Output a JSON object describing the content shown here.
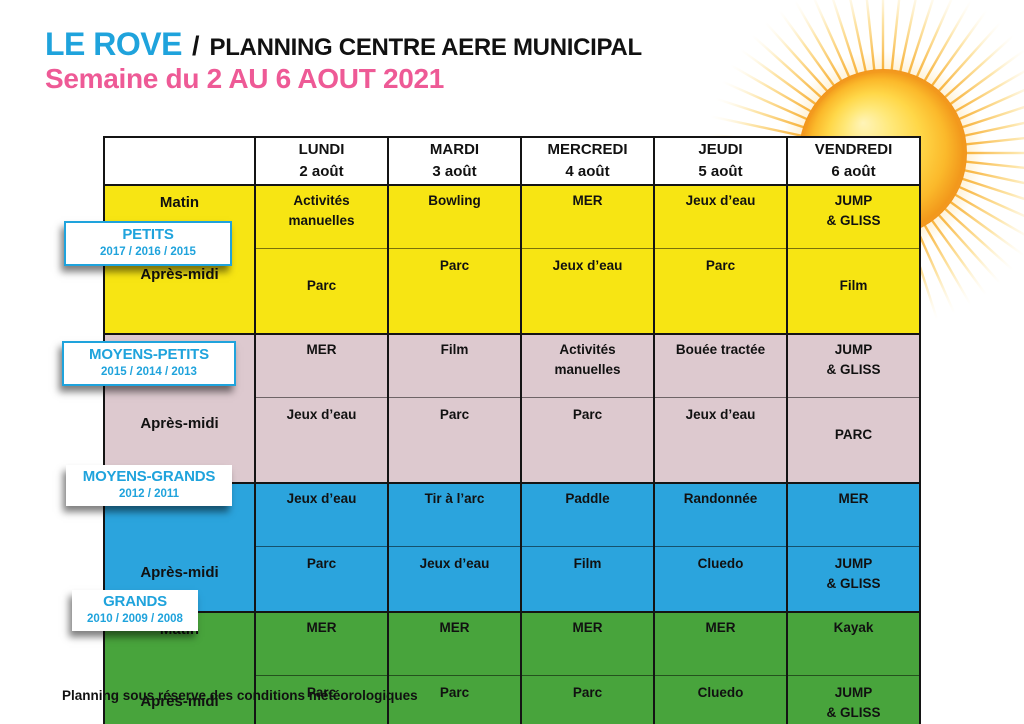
{
  "page": {
    "title_brand": "LE ROVE",
    "title_separator": "/",
    "title_rest": "PLANNING CENTRE AERE MUNICIPAL",
    "subtitle": "Semaine du 2 AU 6 AOUT 2021",
    "footer_note": "Planning sous réserve des conditions météorologiques"
  },
  "colors": {
    "brand_cyan": "#1FA3DC",
    "subtitle_pink": "#EE5A96",
    "border_black": "#141414",
    "petits_yellow": "#F7E513",
    "moyens_petits_mauve": "#DDC9CF",
    "moyens_grands_blue": "#2BA4DD",
    "grands_green": "#48A43C",
    "sun_core": "#FFD748",
    "sun_rim": "#F09118"
  },
  "icons": {
    "sun": "sun-with-rays"
  },
  "table": {
    "header": {
      "corner_label": "",
      "days": [
        {
          "name": "LUNDI",
          "date": "2 août"
        },
        {
          "name": "MARDI",
          "date": "3 août"
        },
        {
          "name": "MERCREDI",
          "date": "4 août"
        },
        {
          "name": "JEUDI",
          "date": "5 août"
        },
        {
          "name": "VENDREDI",
          "date": "6 août"
        }
      ]
    },
    "row_labels": {
      "morning": "Matin",
      "afternoon": "Après-midi"
    },
    "groups": [
      {
        "id": "petits",
        "label": "PETITS",
        "years": "2017 / 2016 / 2015",
        "color": "#F7E513",
        "label_bordered": true,
        "matin": [
          "Activités\nmanuelles",
          "Bowling",
          "MER",
          "Jeux d’eau",
          "JUMP\n& GLISS"
        ],
        "apres_midi": [
          {
            "text": "Parc",
            "low": true
          },
          "Parc",
          "Jeux d’eau",
          "Parc",
          {
            "text": "Film",
            "low": true
          }
        ]
      },
      {
        "id": "moyens-petits",
        "label": "MOYENS-PETITS",
        "years": "2015 / 2014 / 2013",
        "color": "#DDC9CF",
        "label_bordered": true,
        "matin": [
          "MER",
          "Film",
          "Activités\nmanuelles",
          "Bouée tractée",
          "JUMP\n& GLISS"
        ],
        "apres_midi": [
          "Jeux d’eau",
          "Parc",
          "Parc",
          "Jeux d’eau",
          {
            "text": "PARC",
            "low": true
          }
        ]
      },
      {
        "id": "moyens-grands",
        "label": "MOYENS-GRANDS",
        "years": "2012 / 2011",
        "color": "#2BA4DD",
        "label_bordered": false,
        "matin": [
          "Jeux d’eau",
          "Tir à l’arc",
          "Paddle",
          "Randonnée",
          "MER"
        ],
        "apres_midi": [
          "Parc",
          "Jeux d’eau",
          "Film",
          "Cluedo",
          "JUMP\n& GLISS"
        ]
      },
      {
        "id": "grands",
        "label": "GRANDS",
        "years": "2010 / 2009 / 2008",
        "color": "#48A43C",
        "label_bordered": false,
        "matin": [
          "MER",
          "MER",
          "MER",
          "MER",
          "Kayak"
        ],
        "apres_midi": [
          "Parc",
          "Parc",
          "Parc",
          "Cluedo",
          "JUMP\n& GLISS"
        ]
      }
    ]
  }
}
